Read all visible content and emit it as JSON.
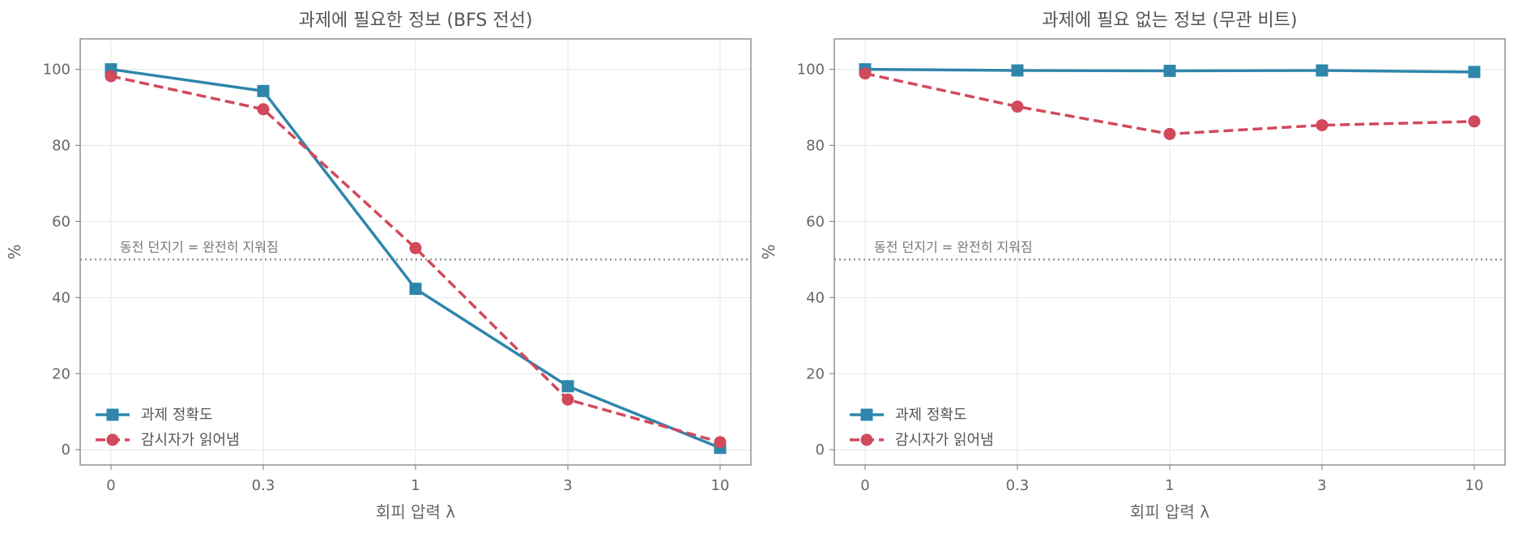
{
  "chart_data": [
    {
      "type": "line",
      "title": "과제에 필요한 정보 (BFS 전선)",
      "xlabel": "회피 압력 λ",
      "ylabel": "%",
      "categories": [
        "0",
        "0.3",
        "1",
        "3",
        "10"
      ],
      "ylim": [
        -4,
        108
      ],
      "yticks": [
        0,
        20,
        40,
        60,
        80,
        100
      ],
      "grid": true,
      "legend": "lower-left",
      "reference_line": {
        "y": 50,
        "label": "동전 던지기 = 완전히 지워짐",
        "style": "dotted"
      },
      "series": [
        {
          "name": "과제 정확도",
          "values": [
            100,
            94.3,
            42.3,
            16.7,
            0.5
          ],
          "color": "#2e86ab",
          "marker": "square",
          "line": "solid"
        },
        {
          "name": "감시자가 읽어냄",
          "values": [
            98.2,
            89.5,
            53.0,
            13.2,
            2.0
          ],
          "color": "#d1495b",
          "marker": "circle",
          "line": "dashed"
        }
      ]
    },
    {
      "type": "line",
      "title": "과제에 필요 없는 정보 (무관 비트)",
      "xlabel": "회피 압력 λ",
      "ylabel": "%",
      "categories": [
        "0",
        "0.3",
        "1",
        "3",
        "10"
      ],
      "ylim": [
        -4,
        108
      ],
      "yticks": [
        0,
        20,
        40,
        60,
        80,
        100
      ],
      "grid": true,
      "legend": "lower-left",
      "reference_line": {
        "y": 50,
        "label": "동전 던지기 = 완전히 지워짐",
        "style": "dotted"
      },
      "series": [
        {
          "name": "과제 정확도",
          "values": [
            100,
            99.7,
            99.6,
            99.7,
            99.3
          ],
          "color": "#2e86ab",
          "marker": "square",
          "line": "solid"
        },
        {
          "name": "감시자가 읽어냄",
          "values": [
            98.9,
            90.2,
            83.0,
            85.3,
            86.3
          ],
          "color": "#d1495b",
          "marker": "circle",
          "line": "dashed"
        }
      ]
    }
  ]
}
